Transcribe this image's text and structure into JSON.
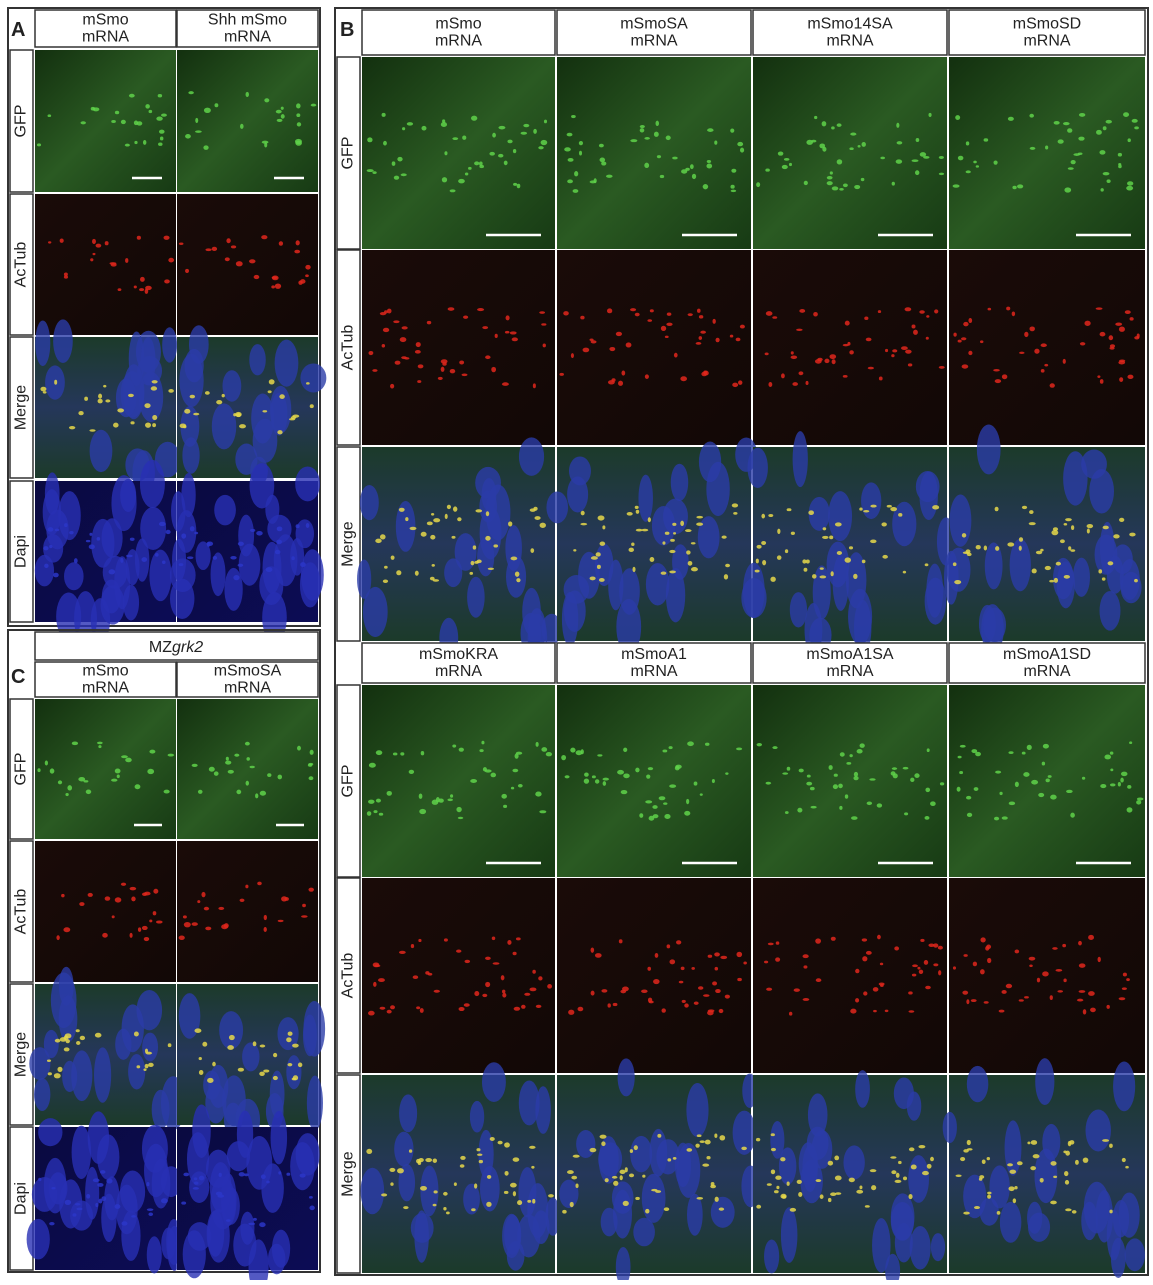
{
  "panels": [
    {
      "letter": "A",
      "columns": [
        [
          "mSmo",
          "mRNA"
        ],
        [
          "Shh mSmo",
          "mRNA"
        ]
      ],
      "rows": [
        "GFP",
        "AcTub",
        "Merge",
        "Dapi"
      ]
    },
    {
      "letter": "B",
      "blocks": [
        {
          "columns": [
            [
              "mSmo",
              "mRNA"
            ],
            [
              "mSmoSA",
              "mRNA"
            ],
            [
              "mSmo14SA",
              "mRNA"
            ],
            [
              "mSmoSD",
              "mRNA"
            ]
          ],
          "rows": [
            "GFP",
            "AcTub",
            "Merge"
          ]
        },
        {
          "columns": [
            [
              "mSmoKRA",
              "mRNA"
            ],
            [
              "mSmoA1",
              "mRNA"
            ],
            [
              "mSmoA1SA",
              "mRNA"
            ],
            [
              "mSmoA1SD",
              "mRNA"
            ]
          ],
          "rows": [
            "GFP",
            "AcTub",
            "Merge"
          ]
        }
      ]
    },
    {
      "letter": "C",
      "header": [
        "MZ",
        "grk2"
      ],
      "columns": [
        [
          "mSmo",
          "mRNA"
        ],
        [
          "mSmoSA",
          "mRNA"
        ]
      ],
      "rows": [
        "GFP",
        "AcTub",
        "Merge",
        "Dapi"
      ]
    }
  ]
}
